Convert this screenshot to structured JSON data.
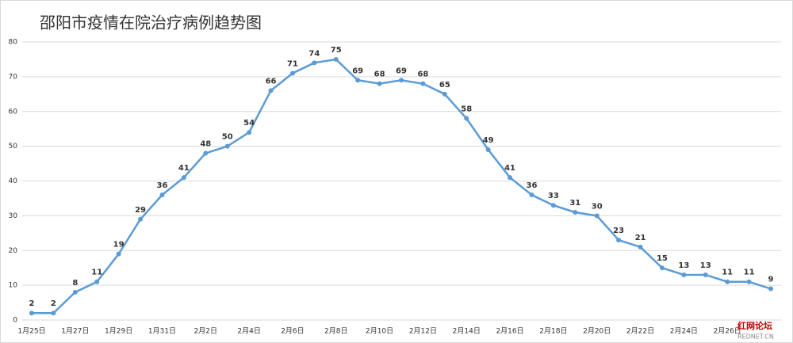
{
  "chart_data": {
    "type": "line",
    "title": "邵阳市疫情在院治疗病例趋势图",
    "categories": [
      "1月25日",
      null,
      "1月27日",
      null,
      "1月29日",
      null,
      "1月31日",
      null,
      "2月2日",
      null,
      "2月4日",
      null,
      "2月6日",
      null,
      "2月8日",
      null,
      "2月10日",
      null,
      "2月12日",
      null,
      "2月14日",
      null,
      "2月16日",
      null,
      "2月18日",
      null,
      "2月20日",
      null,
      "2月22日",
      null,
      "2月24日",
      null,
      "2月26日",
      null,
      null
    ],
    "series": [
      {
        "name": "在院治疗病例",
        "color": "#5b9bd5",
        "values": [
          2,
          2,
          8,
          11,
          19,
          29,
          36,
          41,
          48,
          50,
          54,
          66,
          71,
          74,
          75,
          69,
          68,
          69,
          68,
          65,
          58,
          49,
          41,
          36,
          33,
          31,
          30,
          23,
          21,
          15,
          13,
          13,
          11,
          11,
          9
        ]
      }
    ],
    "ylim": [
      0,
      80
    ],
    "yticks": [
      0,
      10,
      20,
      30,
      40,
      50,
      60,
      70,
      80
    ],
    "grid": true,
    "watermark": {
      "name": "红网论坛",
      "site": "REDNET.CN"
    }
  }
}
